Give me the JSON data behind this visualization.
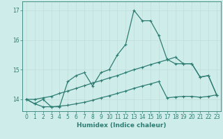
{
  "xlabel": "Humidex (Indice chaleur)",
  "bg_color": "#ceecea",
  "line_color": "#2e7d72",
  "grid_color": "#c0ddd9",
  "x_values": [
    0,
    1,
    2,
    3,
    4,
    5,
    6,
    7,
    8,
    9,
    10,
    11,
    12,
    13,
    14,
    15,
    16,
    17,
    18,
    19,
    20,
    21,
    22,
    23
  ],
  "line1": [
    14.0,
    13.85,
    14.0,
    13.75,
    13.75,
    14.6,
    14.8,
    14.9,
    14.45,
    14.9,
    15.0,
    15.5,
    15.85,
    17.0,
    16.65,
    16.65,
    16.15,
    15.35,
    15.2,
    15.2,
    15.2,
    14.75,
    14.8,
    14.15
  ],
  "line2": [
    14.0,
    14.0,
    14.05,
    14.1,
    14.2,
    14.28,
    14.37,
    14.46,
    14.55,
    14.63,
    14.72,
    14.8,
    14.9,
    15.0,
    15.08,
    15.17,
    15.25,
    15.33,
    15.42,
    15.2,
    15.2,
    14.75,
    14.8,
    14.15
  ],
  "line3": [
    14.0,
    13.85,
    13.75,
    13.75,
    13.77,
    13.8,
    13.85,
    13.9,
    13.97,
    14.05,
    14.12,
    14.2,
    14.28,
    14.37,
    14.45,
    14.52,
    14.6,
    14.05,
    14.08,
    14.1,
    14.1,
    14.07,
    14.1,
    14.15
  ],
  "ylim": [
    13.6,
    17.3
  ],
  "yticks": [
    14,
    15,
    16,
    17
  ],
  "xticks": [
    0,
    1,
    2,
    3,
    4,
    5,
    6,
    7,
    8,
    9,
    10,
    11,
    12,
    13,
    14,
    15,
    16,
    17,
    18,
    19,
    20,
    21,
    22,
    23
  ],
  "marker": "+",
  "marker_size": 3.5,
  "linewidth": 0.9,
  "tick_fontsize": 5.5,
  "label_fontsize": 6.5
}
